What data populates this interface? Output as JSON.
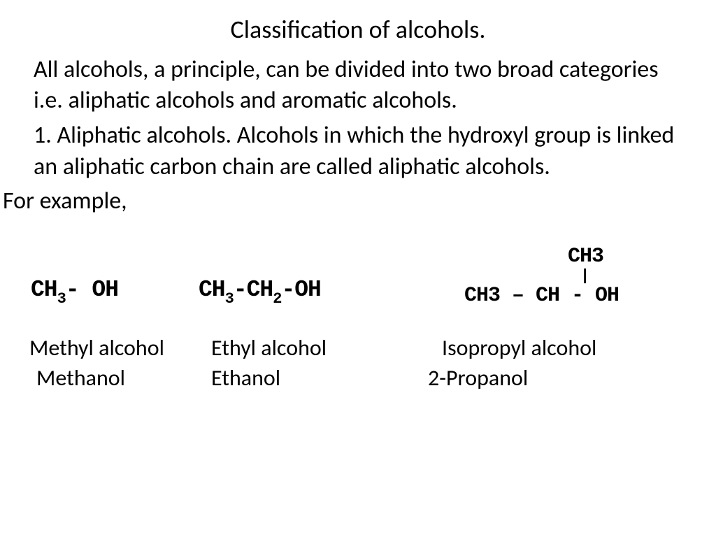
{
  "title": "Classification of alcohols.",
  "para1": "All alcohols, a principle, can be divided into two broad categories i.e. aliphatic alcohols and aromatic alcohols.",
  "para2": "1. Aliphatic alcohols. Alcohols in which the hydroxyl group is linked an aliphatic carbon chain are called aliphatic alcohols.",
  "for_example": "For example,",
  "examples": [
    {
      "formula_parts": [
        "CH",
        "3",
        "- OH"
      ],
      "common": "Methyl alcohol",
      "iupac": "Methanol"
    },
    {
      "formula_parts": [
        "CH",
        "3",
        "-CH",
        "2",
        "-OH"
      ],
      "common": "Ethyl alcohol",
      "iupac": "Ethanol"
    },
    {
      "top_parts": [
        "CH",
        "3"
      ],
      "bond": "|",
      "bottom_parts": [
        "CH",
        "3",
        " – CH - OH"
      ],
      "common": "Isopropyl alcohol",
      "iupac": "2-Propanol"
    }
  ],
  "style": {
    "background_color": "#ffffff",
    "text_color": "#000000",
    "title_fontsize": 36,
    "body_fontsize": 34,
    "formula_fontsize": 33,
    "names_fontsize": 32,
    "font_family": "Calibri",
    "formula_font_family": "Courier New"
  }
}
